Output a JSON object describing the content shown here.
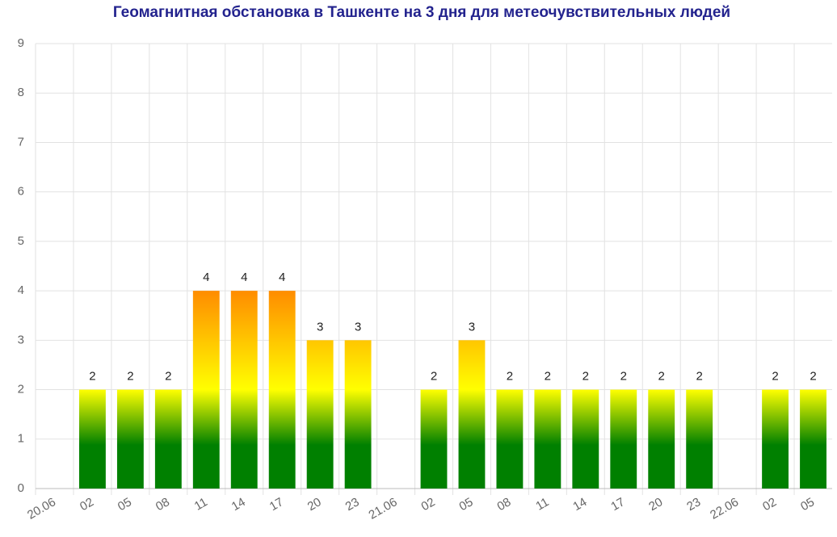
{
  "chart_data": {
    "type": "bar",
    "title": "Геомагнитная обстановка в Ташкенте на 3 дня для метеочувствительных людей",
    "categories": [
      "20.06",
      "02",
      "05",
      "08",
      "11",
      "14",
      "17",
      "20",
      "23",
      "21.06",
      "02",
      "05",
      "08",
      "11",
      "14",
      "17",
      "20",
      "23",
      "22.06",
      "02",
      "05"
    ],
    "values": [
      null,
      2,
      2,
      2,
      4,
      4,
      4,
      3,
      3,
      null,
      2,
      3,
      2,
      2,
      2,
      2,
      2,
      2,
      null,
      2,
      2
    ],
    "ylim": [
      0,
      9
    ],
    "yticks": [
      0,
      1,
      2,
      3,
      4,
      5,
      6,
      7,
      8,
      9
    ],
    "grid": true
  }
}
